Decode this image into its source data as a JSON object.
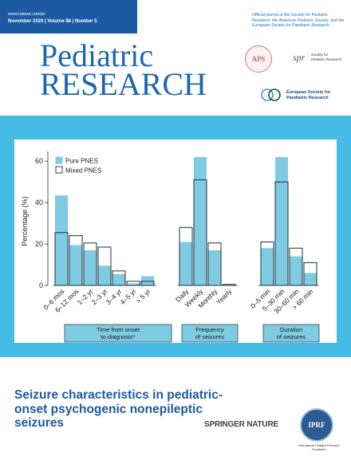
{
  "header": {
    "url": "www.nature.com/pr",
    "issue": "November 2020 | Volume 88 | Number 5"
  },
  "journal": {
    "line1": "Pediatric",
    "line2": "RESEARCH"
  },
  "official_text": "Official journal of the Society for Pediatric Research, the American Pediatric Society, and the European Society for Paediatric Research",
  "logos": {
    "aps": "APS",
    "spr_mark": "spr",
    "spr_name": "Society for Pediatric Research",
    "esp_name": "European Society for Paediatric Research",
    "iprf": "IPRF",
    "iprf_name": "International Pediatric Research Foundation"
  },
  "colors": {
    "brand_blue": "#1c5aa3",
    "panel_cyan": "#46bbe6",
    "bar_fill": "#7fcbe1",
    "bar_outline": "#1f3140"
  },
  "chart_data": {
    "type": "bar",
    "ylabel": "Percentage (%)",
    "ylim": [
      0,
      62
    ],
    "yticks": [
      0,
      20,
      40,
      60
    ],
    "legend": {
      "placement": "top-left",
      "pure": "Pure PNES",
      "mixed": "Mixed PNES"
    },
    "groups": [
      {
        "label": "Time from onset to diagnosis*",
        "label_lines": [
          "Time from onset",
          "to diagnosis*"
        ],
        "categories": [
          "0–6 mos",
          "6–12 mos",
          "1–2 yr",
          "2–3 yr",
          "3–4 yr",
          "4–5 yr",
          "> 5 yr"
        ],
        "pure": [
          43.5,
          19.5,
          17,
          9.5,
          5.5,
          1,
          4.5
        ],
        "mixed": [
          25.5,
          24,
          20.5,
          18.5,
          7,
          2,
          2
        ]
      },
      {
        "label": "Frequency of seizures",
        "label_lines": [
          "Frequency",
          "of seizures"
        ],
        "categories": [
          "Daily",
          "Weekly",
          "Monthly",
          "Yearly"
        ],
        "pure": [
          21,
          62,
          17,
          0
        ],
        "mixed": [
          28,
          51,
          20.5,
          0.5
        ]
      },
      {
        "label": "Duration of seizures",
        "label_lines": [
          "Duration",
          "of seizures"
        ],
        "categories": [
          "0–5 min",
          "5–30 min",
          "30–60 min",
          "> 60 min"
        ],
        "pure": [
          18,
          62,
          14,
          6
        ],
        "mixed": [
          21,
          50,
          18,
          11
        ]
      }
    ]
  },
  "cover_title": "Seizure characteristics in pediatric-onset psychogenic nonepileptic seizures",
  "publisher": "SPRINGER NATURE"
}
